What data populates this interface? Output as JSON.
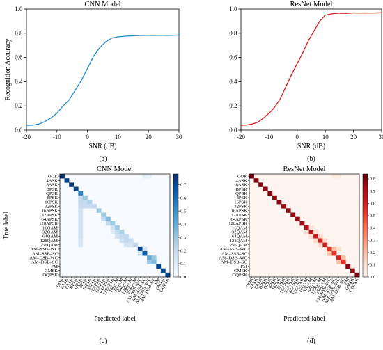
{
  "chart_data": [
    {
      "type": "line",
      "panel": "(a)",
      "title": "CNN Model",
      "xlabel": "SNR (dB)",
      "ylabel": "Recognition Accuracy",
      "xlim": [
        -20,
        30
      ],
      "ylim": [
        0.0,
        1.0
      ],
      "xticks": [
        -20,
        -10,
        0,
        10,
        20,
        30
      ],
      "yticks": [
        "0.0",
        "0.2",
        "0.4",
        "0.6",
        "0.8",
        "1.0"
      ],
      "grid": false,
      "color": "#1f8ac8",
      "series": [
        {
          "x": [
            -20,
            -18,
            -16,
            -14,
            -12,
            -10,
            -8,
            -6,
            -4,
            -2,
            0,
            2,
            4,
            6,
            8,
            10,
            12,
            14,
            16,
            18,
            20,
            22,
            24,
            26,
            28,
            30
          ],
          "y": [
            0.04,
            0.041,
            0.05,
            0.07,
            0.1,
            0.14,
            0.2,
            0.25,
            0.33,
            0.41,
            0.51,
            0.61,
            0.68,
            0.73,
            0.76,
            0.77,
            0.775,
            0.778,
            0.78,
            0.782,
            0.783,
            0.782,
            0.783,
            0.782,
            0.783,
            0.785
          ]
        }
      ]
    },
    {
      "type": "line",
      "panel": "(b)",
      "title": "ResNet Model",
      "xlabel": "SNR (dB)",
      "ylabel": "",
      "xlim": [
        -20,
        30
      ],
      "ylim": [
        0.0,
        1.0
      ],
      "xticks": [
        -20,
        -10,
        0,
        10,
        20,
        30
      ],
      "yticks": [
        "0.0",
        "0.2",
        "0.4",
        "0.6",
        "0.8",
        "1.0"
      ],
      "grid": false,
      "color": "#d7191c",
      "series": [
        {
          "x": [
            -20,
            -18,
            -16,
            -14,
            -12,
            -10,
            -8,
            -6,
            -4,
            -2,
            0,
            2,
            4,
            6,
            8,
            10,
            12,
            14,
            16,
            18,
            20,
            22,
            24,
            26,
            28,
            30
          ],
          "y": [
            0.04,
            0.042,
            0.05,
            0.065,
            0.1,
            0.14,
            0.19,
            0.26,
            0.36,
            0.46,
            0.55,
            0.64,
            0.74,
            0.82,
            0.9,
            0.95,
            0.96,
            0.965,
            0.965,
            0.965,
            0.968,
            0.967,
            0.968,
            0.967,
            0.968,
            0.97
          ]
        }
      ]
    },
    {
      "type": "heatmap",
      "panel": "(c)",
      "title": "CNN Model",
      "xlabel": "Predicted label",
      "ylabel": "True label",
      "colormap": "blues",
      "colorbar_ticks": [
        "0.0",
        "0.1",
        "0.2",
        "0.3",
        "0.4",
        "0.5",
        "0.6",
        "0.7"
      ],
      "colorbar_max": 0.78,
      "labels": [
        "OOK",
        "4ASK",
        "8ASK",
        "BPSK",
        "QPSK",
        "8PSK",
        "16PSK",
        "32PSK",
        "16APSK",
        "32APSK",
        "64APSK",
        "128APSK",
        "16QAM",
        "32QAM",
        "64QAM",
        "128QAM",
        "256QAM",
        "AM–SSB–WC",
        "AM–SSB–SC",
        "AM–DSB–WC",
        "AM–DSB–SC",
        "FM",
        "GMSK",
        "OQPSK"
      ],
      "diagonal": [
        0.78,
        0.72,
        0.74,
        0.72,
        0.55,
        0.3,
        0.25,
        0.2,
        0.3,
        0.3,
        0.35,
        0.3,
        0.3,
        0.25,
        0.2,
        0.18,
        0.22,
        0.7,
        0.65,
        0.4,
        0.35,
        0.72,
        0.7,
        0.72
      ],
      "off_diagonal": [
        {
          "row": 0,
          "col": 18,
          "value": 0.08
        },
        {
          "row": 0,
          "col": 19,
          "value": 0.06
        },
        {
          "row": 5,
          "col": 4,
          "value": 0.2
        },
        {
          "row": 6,
          "col": 4,
          "value": 0.2
        },
        {
          "row": 6,
          "col": 5,
          "value": 0.2
        },
        {
          "row": 7,
          "col": 4,
          "value": 0.18
        },
        {
          "row": 7,
          "col": 5,
          "value": 0.18
        },
        {
          "row": 7,
          "col": 6,
          "value": 0.18
        },
        {
          "row": 8,
          "col": 4,
          "value": 0.15
        },
        {
          "row": 9,
          "col": 4,
          "value": 0.15
        },
        {
          "row": 10,
          "col": 4,
          "value": 0.15
        },
        {
          "row": 10,
          "col": 9,
          "value": 0.2
        },
        {
          "row": 11,
          "col": 4,
          "value": 0.15
        },
        {
          "row": 11,
          "col": 10,
          "value": 0.2
        },
        {
          "row": 12,
          "col": 4,
          "value": 0.15
        },
        {
          "row": 12,
          "col": 11,
          "value": 0.15
        },
        {
          "row": 13,
          "col": 4,
          "value": 0.15
        },
        {
          "row": 13,
          "col": 11,
          "value": 0.1
        },
        {
          "row": 13,
          "col": 12,
          "value": 0.2
        },
        {
          "row": 14,
          "col": 4,
          "value": 0.15
        },
        {
          "row": 14,
          "col": 12,
          "value": 0.15
        },
        {
          "row": 14,
          "col": 13,
          "value": 0.2
        },
        {
          "row": 15,
          "col": 4,
          "value": 0.12
        },
        {
          "row": 15,
          "col": 13,
          "value": 0.15
        },
        {
          "row": 15,
          "col": 14,
          "value": 0.2
        },
        {
          "row": 16,
          "col": 4,
          "value": 0.12
        },
        {
          "row": 16,
          "col": 14,
          "value": 0.15
        },
        {
          "row": 16,
          "col": 15,
          "value": 0.15
        },
        {
          "row": 17,
          "col": 18,
          "value": 0.15
        },
        {
          "row": 18,
          "col": 17,
          "value": 0.15
        },
        {
          "row": 19,
          "col": 20,
          "value": 0.3
        },
        {
          "row": 20,
          "col": 19,
          "value": 0.3
        }
      ]
    },
    {
      "type": "heatmap",
      "panel": "(d)",
      "title": "ResNet Model",
      "xlabel": "Predicted label",
      "ylabel": "",
      "colormap": "reds",
      "colorbar_ticks": [
        "0.0",
        "0.1",
        "0.2",
        "0.3",
        "0.4",
        "0.5",
        "0.6",
        "0.7",
        "0.8"
      ],
      "colorbar_max": 0.84,
      "labels": [
        "OOK",
        "4ASK",
        "8ASK",
        "BPSK",
        "QPSK",
        "8PSK",
        "16PSK",
        "32PSK",
        "16APSK",
        "32APSK",
        "64APSK",
        "128APSK",
        "16QAM",
        "32QAM",
        "64QAM",
        "128QAM",
        "256QAM",
        "AM–SSB–WC",
        "AM–SSB–SC",
        "AM–DSB–WC",
        "AM–DSB–SC",
        "FM",
        "GMSK",
        "OQPSK"
      ],
      "diagonal": [
        0.82,
        0.8,
        0.8,
        0.78,
        0.8,
        0.78,
        0.78,
        0.76,
        0.78,
        0.76,
        0.76,
        0.74,
        0.7,
        0.68,
        0.65,
        0.6,
        0.62,
        0.55,
        0.55,
        0.6,
        0.55,
        0.8,
        0.78,
        0.8
      ],
      "off_diagonal": [
        {
          "row": 0,
          "col": 18,
          "value": 0.06
        },
        {
          "row": 0,
          "col": 19,
          "value": 0.06
        },
        {
          "row": 12,
          "col": 13,
          "value": 0.1
        },
        {
          "row": 13,
          "col": 12,
          "value": 0.1
        },
        {
          "row": 13,
          "col": 14,
          "value": 0.1
        },
        {
          "row": 14,
          "col": 13,
          "value": 0.1
        },
        {
          "row": 14,
          "col": 15,
          "value": 0.12
        },
        {
          "row": 15,
          "col": 14,
          "value": 0.12
        },
        {
          "row": 15,
          "col": 16,
          "value": 0.12
        },
        {
          "row": 16,
          "col": 15,
          "value": 0.12
        },
        {
          "row": 17,
          "col": 18,
          "value": 0.2
        },
        {
          "row": 18,
          "col": 17,
          "value": 0.2
        },
        {
          "row": 17,
          "col": 19,
          "value": 0.1
        },
        {
          "row": 19,
          "col": 20,
          "value": 0.2
        },
        {
          "row": 20,
          "col": 19,
          "value": 0.2
        }
      ]
    }
  ]
}
